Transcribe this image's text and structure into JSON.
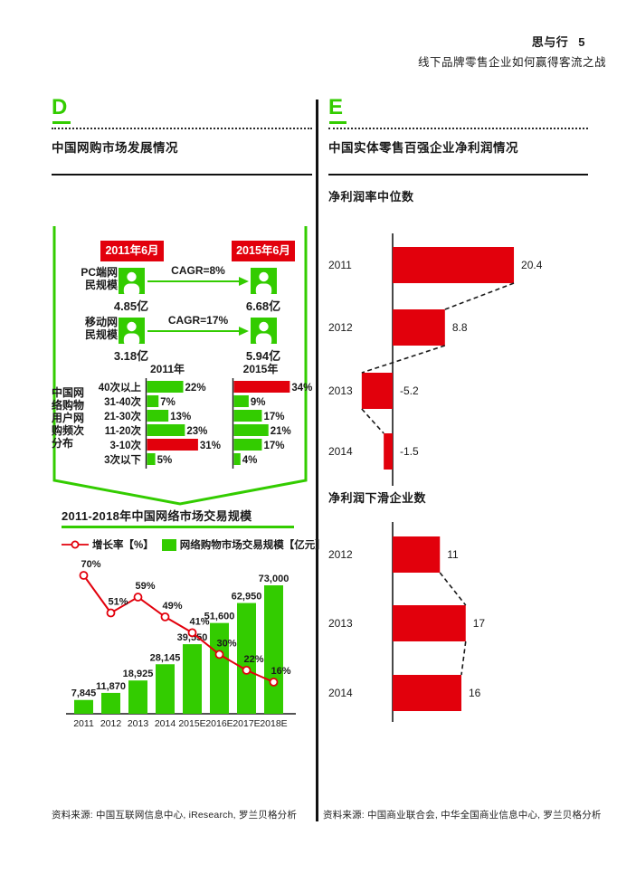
{
  "page": {
    "brand": "思与行",
    "page_number": "5",
    "header_subtitle": "线下品牌零售企业如何赢得客流之战"
  },
  "colors": {
    "green": "#33cc00",
    "red": "#e2000c",
    "ink": "#1a1a1a"
  },
  "section_d": {
    "letter": "D",
    "title": "中国网购市场发展情况",
    "netizen_panel": {
      "period_labels": [
        "2011年6月",
        "2015年6月"
      ],
      "rows": [
        {
          "label": "PC端网民规模",
          "cagr_label": "CAGR=8%",
          "value_2011": "4.85亿",
          "value_2015": "6.68亿"
        },
        {
          "label": "移动网民规模",
          "cagr_label": "CAGR=17%",
          "value_2011": "3.18亿",
          "value_2015": "5.94亿"
        }
      ]
    },
    "source": "资料来源: 中国互联网信息中心, iResearch, 罗兰贝格分析"
  },
  "section_e": {
    "letter": "E",
    "title": "中国实体零售百强企业净利润情况",
    "source": "资料来源: 中国商业联合会, 中华全国商业信息中心, 罗兰贝格分析"
  },
  "chart_data": [
    {
      "id": "purchase-frequency",
      "type": "bar",
      "orientation": "horizontal",
      "title": "中国网络购物用户网购频次分布",
      "col_headers": [
        "2011年",
        "2015年"
      ],
      "categories": [
        "40次以上",
        "31-40次",
        "21-30次",
        "11-20次",
        "3-10次",
        "3次以下"
      ],
      "series": [
        {
          "name": "2011年",
          "values": [
            22,
            7,
            13,
            23,
            31,
            5
          ],
          "colors": [
            "green",
            "green",
            "green",
            "green",
            "red",
            "green"
          ]
        },
        {
          "name": "2015年",
          "values": [
            34,
            9,
            17,
            21,
            17,
            4
          ],
          "colors": [
            "red",
            "green",
            "green",
            "green",
            "green",
            "green"
          ]
        }
      ],
      "unit": "%",
      "grid": false,
      "legend_position": "none"
    },
    {
      "id": "online-market-size",
      "type": "bar",
      "title": "2011-2018年中国网络市场交易规模",
      "categories": [
        "2011",
        "2012",
        "2013",
        "2014",
        "2015E",
        "2016E",
        "2017E",
        "2018E"
      ],
      "series": [
        {
          "name": "网络购物市场交易规模【亿元】",
          "kind": "bar",
          "values": [
            7845,
            11870,
            18925,
            28145,
            39550,
            51600,
            62950,
            73000
          ]
        },
        {
          "name": "增长率【%】",
          "kind": "line",
          "values": [
            70,
            51,
            59,
            49,
            41,
            30,
            22,
            16
          ]
        }
      ],
      "ylim": [
        0,
        75000
      ],
      "grid": false,
      "legend_position": "top"
    },
    {
      "id": "net-margin-median",
      "type": "bar",
      "orientation": "horizontal",
      "title": "净利润率中位数",
      "categories": [
        "2011",
        "2012",
        "2013",
        "2014"
      ],
      "values": [
        20.4,
        8.8,
        -5.2,
        -1.5
      ],
      "grid": false,
      "legend_position": "none"
    },
    {
      "id": "declining-profit-count",
      "type": "bar",
      "orientation": "horizontal",
      "title": "净利润下滑企业数",
      "categories": [
        "2012",
        "2013",
        "2014"
      ],
      "values": [
        11,
        17,
        16
      ],
      "grid": false,
      "legend_position": "none"
    }
  ]
}
